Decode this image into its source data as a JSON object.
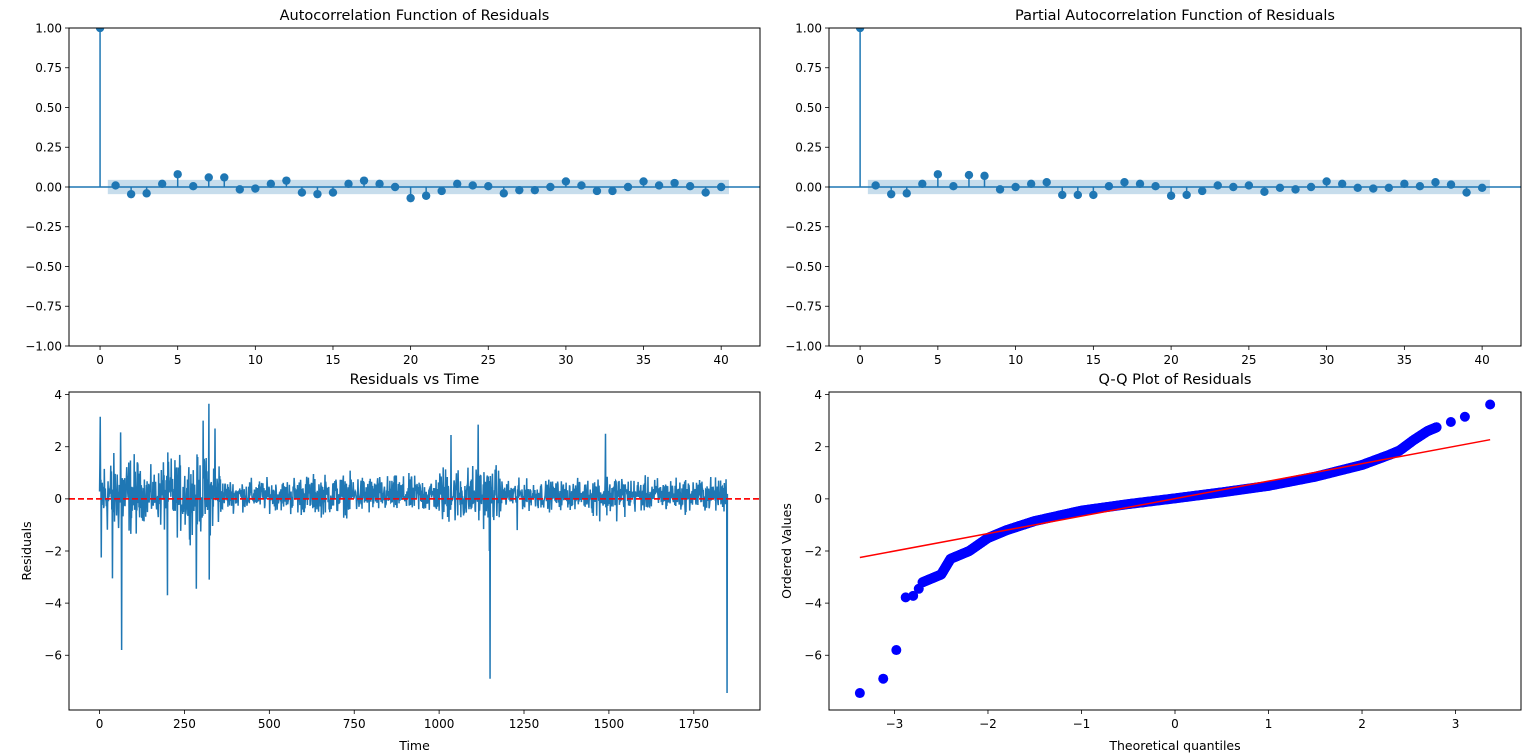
{
  "colors": {
    "stem": "#1f77b4",
    "conf_band": "#1f77b4",
    "ref_line": "#ff0000",
    "qq_points": "#0000ff",
    "residual_line": "#1f77b4"
  },
  "chart_data": [
    {
      "type": "stem",
      "title": "Autocorrelation Function of Residuals",
      "xlabel": "",
      "ylabel": "",
      "xlim": [
        -2,
        42.5
      ],
      "ylim": [
        -1.0,
        1.0
      ],
      "xticks": [
        "0",
        "5",
        "10",
        "15",
        "20",
        "25",
        "30",
        "35",
        "40"
      ],
      "yticks": [
        "1.00",
        "0.75",
        "0.50",
        "0.25",
        "0.00",
        "−0.25",
        "−0.50",
        "−0.75",
        "−1.00"
      ],
      "lags": [
        0,
        1,
        2,
        3,
        4,
        5,
        6,
        7,
        8,
        9,
        10,
        11,
        12,
        13,
        14,
        15,
        16,
        17,
        18,
        19,
        20,
        21,
        22,
        23,
        24,
        25,
        26,
        27,
        28,
        29,
        30,
        31,
        32,
        33,
        34,
        35,
        36,
        37,
        38,
        39,
        40
      ],
      "values": [
        1.0,
        0.01,
        -0.045,
        -0.04,
        0.02,
        0.08,
        0.005,
        0.06,
        0.06,
        -0.015,
        -0.01,
        0.02,
        0.04,
        -0.035,
        -0.045,
        -0.035,
        0.02,
        0.04,
        0.02,
        0.0,
        -0.07,
        -0.055,
        -0.025,
        0.02,
        0.01,
        0.005,
        -0.04,
        -0.02,
        -0.02,
        0.0,
        0.035,
        0.01,
        -0.025,
        -0.025,
        0.0,
        0.035,
        0.01,
        0.025,
        0.005,
        -0.035,
        0.0
      ],
      "conf_band": 0.045
    },
    {
      "type": "stem",
      "title": "Partial Autocorrelation Function of Residuals",
      "xlabel": "",
      "ylabel": "",
      "xlim": [
        -2,
        42.5
      ],
      "ylim": [
        -1.0,
        1.0
      ],
      "xticks": [
        "0",
        "5",
        "10",
        "15",
        "20",
        "25",
        "30",
        "35",
        "40"
      ],
      "yticks": [
        "1.00",
        "0.75",
        "0.50",
        "0.25",
        "0.00",
        "−0.25",
        "−0.50",
        "−0.75",
        "−1.00"
      ],
      "lags": [
        0,
        1,
        2,
        3,
        4,
        5,
        6,
        7,
        8,
        9,
        10,
        11,
        12,
        13,
        14,
        15,
        16,
        17,
        18,
        19,
        20,
        21,
        22,
        23,
        24,
        25,
        26,
        27,
        28,
        29,
        30,
        31,
        32,
        33,
        34,
        35,
        36,
        37,
        38,
        39,
        40
      ],
      "values": [
        1.0,
        0.01,
        -0.045,
        -0.04,
        0.02,
        0.08,
        0.005,
        0.075,
        0.07,
        -0.015,
        0.0,
        0.02,
        0.03,
        -0.05,
        -0.05,
        -0.05,
        0.005,
        0.03,
        0.02,
        0.005,
        -0.055,
        -0.05,
        -0.025,
        0.01,
        0.0,
        0.01,
        -0.03,
        -0.005,
        -0.015,
        0.0,
        0.035,
        0.02,
        -0.005,
        -0.01,
        -0.005,
        0.02,
        0.005,
        0.03,
        0.015,
        -0.035,
        -0.005
      ],
      "conf_band": 0.045
    },
    {
      "type": "line",
      "title": "Residuals vs Time",
      "xlabel": "Time",
      "ylabel": "Residuals",
      "xlim": [
        -90,
        1945
      ],
      "ylim": [
        -8.1,
        4.1
      ],
      "xticks": [
        "0",
        "250",
        "500",
        "750",
        "1000",
        "1250",
        "1500",
        "1750"
      ],
      "yticks": [
        "4",
        "2",
        "0",
        "−2",
        "−4",
        "−6"
      ],
      "n_points": 1850,
      "reference_line": {
        "y": 0,
        "style": "dashed"
      },
      "notable_points": [
        {
          "x": 2,
          "y": 3.15
        },
        {
          "x": 5,
          "y": -2.25
        },
        {
          "x": 38,
          "y": -3.05
        },
        {
          "x": 62,
          "y": 2.55
        },
        {
          "x": 65,
          "y": -5.8
        },
        {
          "x": 200,
          "y": -3.7
        },
        {
          "x": 285,
          "y": -3.45
        },
        {
          "x": 305,
          "y": 3.0
        },
        {
          "x": 322,
          "y": 3.65
        },
        {
          "x": 323,
          "y": -3.1
        },
        {
          "x": 340,
          "y": 2.7
        },
        {
          "x": 1035,
          "y": 2.45
        },
        {
          "x": 1115,
          "y": 2.85
        },
        {
          "x": 1148,
          "y": -2.0
        },
        {
          "x": 1150,
          "y": -6.9
        },
        {
          "x": 1230,
          "y": -1.2
        },
        {
          "x": 1490,
          "y": 2.5
        },
        {
          "x": 1845,
          "y": 0.75
        },
        {
          "x": 1848,
          "y": -7.45
        }
      ]
    },
    {
      "type": "scatter",
      "title": "Q-Q Plot of Residuals",
      "xlabel": "Theoretical quantiles",
      "ylabel": "Ordered Values",
      "xlim": [
        -3.7,
        3.7
      ],
      "ylim": [
        -8.1,
        4.1
      ],
      "xticks": [
        "−3",
        "−2",
        "−1",
        "0",
        "1",
        "2",
        "3"
      ],
      "yticks": [
        "4",
        "2",
        "0",
        "−2",
        "−4",
        "−6"
      ],
      "fit_line": {
        "x": [
          -3.37,
          3.37
        ],
        "y": [
          -2.25,
          2.27
        ]
      },
      "tail_points": [
        {
          "x": -3.37,
          "y": -7.45
        },
        {
          "x": -3.12,
          "y": -6.9
        },
        {
          "x": -2.98,
          "y": -5.8
        },
        {
          "x": -2.88,
          "y": -3.78
        },
        {
          "x": -2.8,
          "y": -3.72
        },
        {
          "x": -2.74,
          "y": -3.45
        },
        {
          "x": 2.95,
          "y": 2.95
        },
        {
          "x": 3.1,
          "y": 3.15
        },
        {
          "x": 3.37,
          "y": 3.62
        }
      ],
      "body_curve": [
        {
          "x": -2.7,
          "y": -3.2
        },
        {
          "x": -2.5,
          "y": -2.9
        },
        {
          "x": -2.4,
          "y": -2.3
        },
        {
          "x": -2.2,
          "y": -2.0
        },
        {
          "x": -2.0,
          "y": -1.5
        },
        {
          "x": -1.8,
          "y": -1.2
        },
        {
          "x": -1.5,
          "y": -0.85
        },
        {
          "x": -1.0,
          "y": -0.45
        },
        {
          "x": -0.5,
          "y": -0.2
        },
        {
          "x": 0.0,
          "y": 0.02
        },
        {
          "x": 0.5,
          "y": 0.25
        },
        {
          "x": 1.0,
          "y": 0.5
        },
        {
          "x": 1.5,
          "y": 0.85
        },
        {
          "x": 2.0,
          "y": 1.3
        },
        {
          "x": 2.3,
          "y": 1.7
        },
        {
          "x": 2.4,
          "y": 1.85
        },
        {
          "x": 2.55,
          "y": 2.25
        },
        {
          "x": 2.7,
          "y": 2.6
        },
        {
          "x": 2.8,
          "y": 2.75
        }
      ]
    }
  ]
}
